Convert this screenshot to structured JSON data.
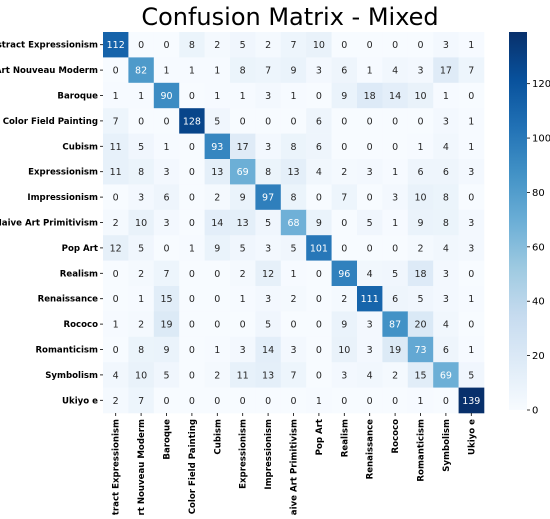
{
  "chart_data": {
    "type": "heatmap",
    "title": "Confusion Matrix - Mixed",
    "xlabel": "",
    "ylabel": "",
    "categories": [
      "Abstract Expressionism",
      "Art Nouveau Moderm",
      "Baroque",
      "Color Field Painting",
      "Cubism",
      "Expressionism",
      "Impressionism",
      "Naive Art Primitivism",
      "Pop Art",
      "Realism",
      "Renaissance",
      "Rococo",
      "Romanticism",
      "Symbolism",
      "Ukiyo e"
    ],
    "matrix": [
      [
        112,
        0,
        0,
        8,
        2,
        5,
        2,
        7,
        10,
        0,
        0,
        0,
        0,
        3,
        1
      ],
      [
        0,
        82,
        1,
        1,
        1,
        8,
        7,
        9,
        3,
        6,
        1,
        4,
        3,
        17,
        7
      ],
      [
        1,
        1,
        90,
        0,
        1,
        1,
        3,
        1,
        0,
        9,
        18,
        14,
        10,
        1,
        0
      ],
      [
        7,
        0,
        0,
        128,
        5,
        0,
        0,
        0,
        6,
        0,
        0,
        0,
        0,
        3,
        1
      ],
      [
        11,
        5,
        1,
        0,
        93,
        17,
        3,
        8,
        6,
        0,
        0,
        0,
        1,
        4,
        1
      ],
      [
        11,
        8,
        3,
        0,
        13,
        69,
        8,
        13,
        4,
        2,
        3,
        1,
        6,
        6,
        3
      ],
      [
        0,
        3,
        6,
        0,
        2,
        9,
        97,
        8,
        0,
        7,
        0,
        3,
        10,
        8,
        0
      ],
      [
        2,
        10,
        3,
        0,
        14,
        13,
        5,
        68,
        9,
        0,
        5,
        1,
        9,
        8,
        3
      ],
      [
        12,
        5,
        0,
        1,
        9,
        5,
        3,
        5,
        101,
        0,
        0,
        0,
        2,
        4,
        3
      ],
      [
        0,
        2,
        7,
        0,
        0,
        2,
        12,
        1,
        0,
        96,
        4,
        5,
        18,
        3,
        0
      ],
      [
        0,
        1,
        15,
        0,
        0,
        1,
        3,
        2,
        0,
        2,
        111,
        6,
        5,
        3,
        1
      ],
      [
        1,
        2,
        19,
        0,
        0,
        0,
        5,
        0,
        0,
        9,
        3,
        87,
        20,
        4,
        0
      ],
      [
        0,
        8,
        9,
        0,
        1,
        3,
        14,
        3,
        0,
        10,
        3,
        19,
        73,
        6,
        1
      ],
      [
        4,
        10,
        5,
        0,
        2,
        11,
        13,
        7,
        0,
        3,
        4,
        2,
        15,
        69,
        5
      ],
      [
        2,
        7,
        0,
        0,
        0,
        0,
        0,
        0,
        1,
        0,
        0,
        0,
        1,
        0,
        139
      ]
    ],
    "colorbar": {
      "min": 0,
      "max": 139,
      "ticks": [
        0,
        20,
        40,
        60,
        80,
        100,
        120
      ]
    },
    "colormap": {
      "low": "#f7fbff",
      "high": "#08306b",
      "name": "Blues"
    },
    "grid": false
  }
}
